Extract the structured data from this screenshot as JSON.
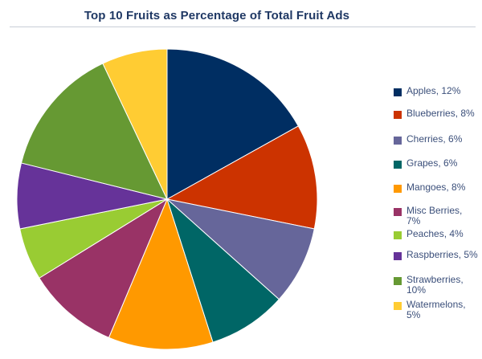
{
  "chart_data": {
    "type": "pie",
    "title": "Top 10 Fruits as Percentage of Total Fruit Ads",
    "legend_position": "right",
    "slices": [
      {
        "label": "Apples, 12%",
        "name": "Apples",
        "value": 12,
        "color": "#002e62"
      },
      {
        "label": "Blueberries, 8%",
        "name": "Blueberries",
        "value": 8,
        "color": "#cc3300"
      },
      {
        "label": "Cherries, 6%",
        "name": "Cherries",
        "value": 6,
        "color": "#66669a"
      },
      {
        "label": "Grapes, 6%",
        "name": "Grapes",
        "value": 6,
        "color": "#006666"
      },
      {
        "label": "Mangoes, 8%",
        "name": "Mangoes",
        "value": 8,
        "color": "#ff9900"
      },
      {
        "label": "Misc Berries, 7%",
        "name": "Misc Berries",
        "value": 7,
        "color": "#993366"
      },
      {
        "label": "Peaches, 4%",
        "name": "Peaches",
        "value": 4,
        "color": "#99cc33"
      },
      {
        "label": "Raspberries, 5%",
        "name": "Raspberries",
        "value": 5,
        "color": "#663399"
      },
      {
        "label": "Strawberries, 10%",
        "name": "Strawberries",
        "value": 10,
        "color": "#669933"
      },
      {
        "label": "Watermelons, 5%",
        "name": "Watermelons",
        "value": 5,
        "color": "#ffcc33"
      }
    ]
  }
}
